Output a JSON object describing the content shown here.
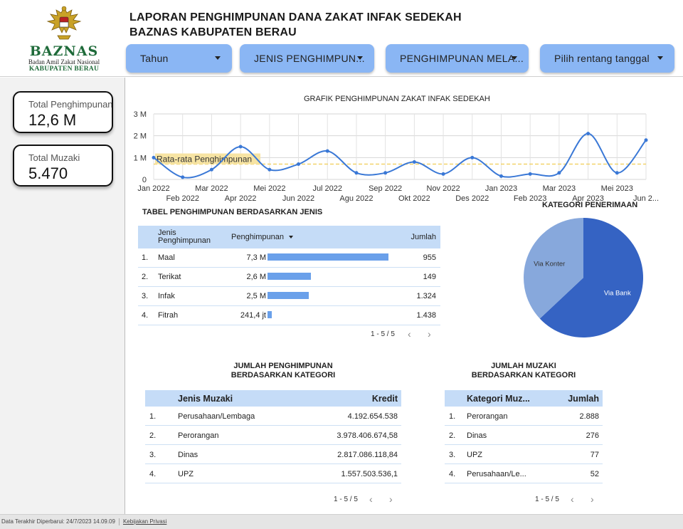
{
  "brand": {
    "name": "BAZNAS",
    "subtitle": "Badan Amil Zakat Nasional",
    "region": "KABUPATEN BERAU"
  },
  "header": {
    "title_line1": "LAPORAN PENGHIMPUNAN DANA ZAKAT INFAK SEDEKAH",
    "title_line2": "BAZNAS KABUPATEN BERAU"
  },
  "filters": [
    {
      "label": "Tahun"
    },
    {
      "label": "JENIS PENGHIMPUN..."
    },
    {
      "label": "PENGHIMPUNAN MELA..."
    },
    {
      "label": "Pilih rentang tanggal"
    }
  ],
  "kpis": [
    {
      "label": "Total Penghimpunan",
      "value": "12,6 M"
    },
    {
      "label": "Total Muzaki",
      "value": "5.470"
    }
  ],
  "line_chart": {
    "title": "GRAFIK PENGHIMPUNAN ZAKAT INFAK SEDEKAH",
    "reference_label": "Rata-rata Penghimpunan",
    "y_ticks": [
      "3 M",
      "2 M",
      "1 M",
      "0"
    ],
    "x_labels_top": [
      "Jan 2022",
      "Mar 2022",
      "Mei 2022",
      "Jul 2022",
      "Sep 2022",
      "Nov 2022",
      "Jan 2023",
      "Mar 2023",
      "Mei 2023"
    ],
    "x_labels_bottom": [
      "Feb 2022",
      "Apr 2022",
      "Jun 2022",
      "Agu 2022",
      "Okt 2022",
      "Des 2022",
      "Feb 2023",
      "Apr 2023",
      "Jun 2..."
    ],
    "colors": {
      "line": "#3a78d6",
      "reference": "#f2d36b"
    }
  },
  "chart_data": {
    "type": "line",
    "x": [
      "Jan 2022",
      "Feb 2022",
      "Mar 2022",
      "Apr 2022",
      "Mei 2022",
      "Jun 2022",
      "Jul 2022",
      "Agu 2022",
      "Sep 2022",
      "Okt 2022",
      "Nov 2022",
      "Des 2022",
      "Jan 2023",
      "Feb 2023",
      "Mar 2023",
      "Apr 2023",
      "Mei 2023",
      "Jun 2023"
    ],
    "values": [
      1.0,
      0.1,
      0.45,
      1.5,
      0.45,
      0.7,
      1.3,
      0.3,
      0.3,
      0.8,
      0.25,
      1.0,
      0.15,
      0.25,
      0.3,
      2.1,
      0.3,
      1.8
    ],
    "reference_value": 0.7,
    "ylim": [
      0,
      3
    ],
    "y_unit": "M",
    "grid": true
  },
  "jenis_table": {
    "title": "TABEL PENGHIMPUNAN BERDASARKAN JENIS",
    "col_jenis": "Jenis Penghimpunan",
    "col_jenis_l1": "Jenis",
    "col_jenis_l2": "Penghimpunan",
    "col_penghimpunan": "Penghimpunan",
    "col_jumlah": "Jumlah",
    "rows": [
      {
        "no": "1.",
        "jenis": "Maal",
        "penghimpunan": "7,3 M",
        "fraction": 1.0,
        "jumlah": "955"
      },
      {
        "no": "2.",
        "jenis": "Terikat",
        "penghimpunan": "2,6 M",
        "fraction": 0.356,
        "jumlah": "149"
      },
      {
        "no": "3.",
        "jenis": "Infak",
        "penghimpunan": "2,5 M",
        "fraction": 0.342,
        "jumlah": "1.324"
      },
      {
        "no": "4.",
        "jenis": "Fitrah",
        "penghimpunan": "241,4 jt",
        "fraction": 0.033,
        "jumlah": "1.438"
      }
    ],
    "pager": "1 - 5 / 5"
  },
  "pie": {
    "title": "KATEGORI PENERIMAAN",
    "slices": [
      {
        "label": "Via Bank",
        "fraction": 0.63,
        "color": "#3563c3"
      },
      {
        "label": "Via Konter",
        "fraction": 0.37,
        "color": "#87a8dc"
      }
    ]
  },
  "kategori_table": {
    "title_line1": "JUMLAH PENGHIMPUNAN",
    "title_line2": "BERDASARKAN KATEGORI",
    "col_jenis": "Jenis Muzaki",
    "col_kredit": "Kredit",
    "rows": [
      {
        "no": "1.",
        "jenis": "Perusahaan/Lembaga",
        "kredit": "4.192.654.538"
      },
      {
        "no": "2.",
        "jenis": "Perorangan",
        "kredit": "3.978.406.674,58"
      },
      {
        "no": "3.",
        "jenis": "Dinas",
        "kredit": "2.817.086.118,84"
      },
      {
        "no": "4.",
        "jenis": "UPZ",
        "kredit": "1.557.503.536,1"
      }
    ],
    "pager": "1 - 5 / 5"
  },
  "muzaki_table": {
    "title_line1": "JUMLAH MUZAKI",
    "title_line2": "BERDASARKAN KATEGORI",
    "col_kategori": "Kategori Muz...",
    "col_jumlah": "Jumlah",
    "rows": [
      {
        "no": "1.",
        "kategori": "Perorangan",
        "jumlah": "2.888"
      },
      {
        "no": "2.",
        "kategori": "Dinas",
        "jumlah": "276"
      },
      {
        "no": "3.",
        "kategori": "UPZ",
        "jumlah": "77"
      },
      {
        "no": "4.",
        "kategori": "Perusahaan/Le...",
        "jumlah": "52"
      }
    ],
    "pager": "1 - 5 / 5"
  },
  "footer": {
    "updated": "Data Terakhir Diperbarui: 24/7/2023 14.09.09",
    "privacy": "Kebijakan Privasi"
  }
}
